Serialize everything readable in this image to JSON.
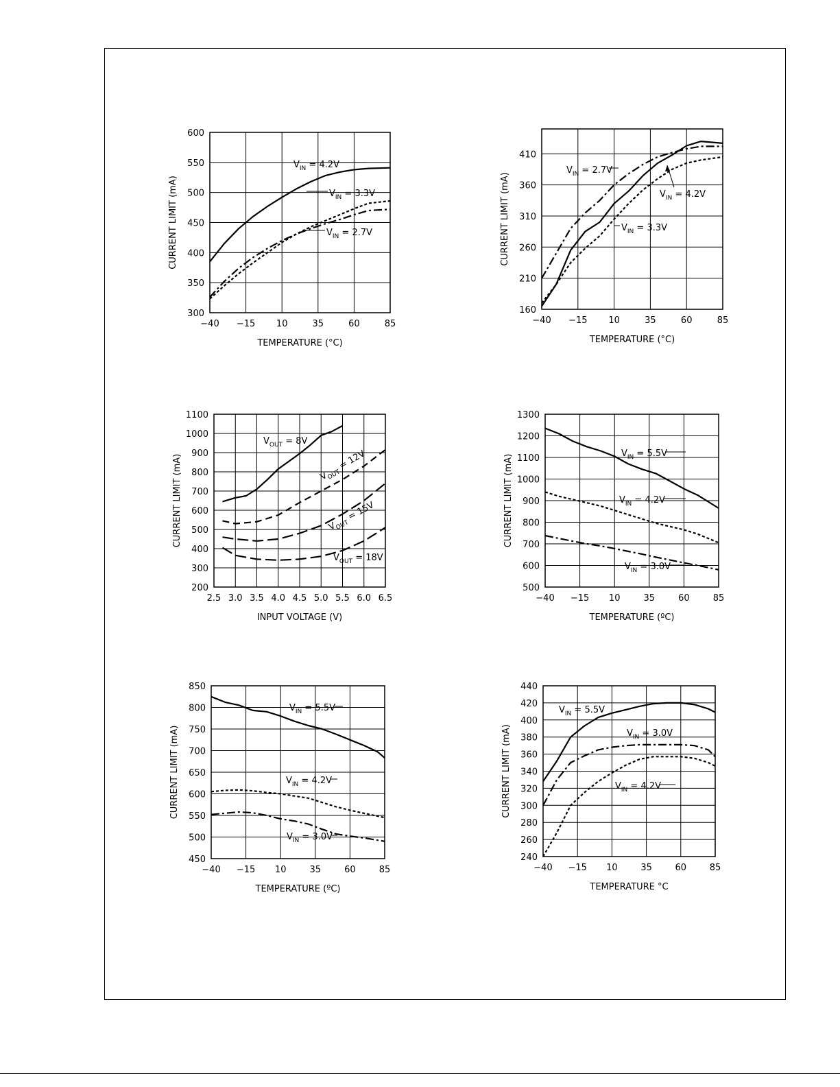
{
  "chart_data": [
    {
      "type": "line",
      "xlabel": "TEMPERATURE (°C)",
      "ylabel": "CURRENT LIMIT (mA)",
      "xlim": [
        -40,
        85
      ],
      "ylim": [
        300,
        600
      ],
      "xticks": [
        -40,
        -15,
        10,
        35,
        60,
        85
      ],
      "yticks": [
        300,
        350,
        400,
        450,
        500,
        550,
        600
      ],
      "grid": true,
      "series": [
        {
          "name": "VIN = 4.2V",
          "label_main": "V",
          "label_sub": "IN",
          "label_tail": " = 4.2V",
          "style": "solid",
          "x": [
            -40,
            -30,
            -20,
            -10,
            0,
            10,
            20,
            30,
            40,
            50,
            60,
            70,
            85
          ],
          "y": [
            385,
            415,
            440,
            460,
            477,
            492,
            506,
            518,
            528,
            534,
            538,
            540,
            541
          ]
        },
        {
          "name": "VIN = 3.3V",
          "label_main": "V",
          "label_sub": "IN",
          "label_tail": " = 3.3V",
          "style": "dotted",
          "x": [
            -40,
            -30,
            -20,
            -10,
            0,
            10,
            20,
            30,
            40,
            50,
            60,
            70,
            85
          ],
          "y": [
            323,
            345,
            365,
            383,
            400,
            417,
            431,
            443,
            453,
            463,
            473,
            482,
            486
          ]
        },
        {
          "name": "VIN = 2.7V",
          "label_main": "V",
          "label_sub": "IN",
          "label_tail": " = 2.7V",
          "style": "dashdot",
          "x": [
            -40,
            -30,
            -20,
            -10,
            0,
            10,
            20,
            30,
            40,
            50,
            60,
            70,
            85
          ],
          "y": [
            326,
            352,
            374,
            392,
            407,
            420,
            431,
            440,
            448,
            455,
            463,
            470,
            472
          ]
        }
      ]
    },
    {
      "type": "line",
      "xlabel": "TEMPERATURE (°C)",
      "ylabel": "CURRENT LIMIT (mA)",
      "xlim": [
        -40,
        85
      ],
      "ylim": [
        160,
        450
      ],
      "xticks": [
        -40,
        -15,
        10,
        35,
        60,
        85
      ],
      "yticks": [
        160,
        210,
        260,
        310,
        360,
        410
      ],
      "grid": true,
      "series": [
        {
          "name": "VIN = 2.7V",
          "label_main": "V",
          "label_sub": "IN",
          "label_tail": " = 2.7V",
          "style": "dashdot",
          "x": [
            -40,
            -30,
            -20,
            -10,
            0,
            10,
            20,
            30,
            40,
            50,
            60,
            70,
            85
          ],
          "y": [
            210,
            250,
            290,
            315,
            335,
            360,
            378,
            393,
            405,
            412,
            418,
            422,
            422
          ]
        },
        {
          "name": "VIN = 4.2V",
          "label_main": "V",
          "label_sub": "IN",
          "label_tail": " = 4.2V",
          "style": "solid",
          "x": [
            -40,
            -30,
            -20,
            -10,
            0,
            10,
            20,
            30,
            40,
            50,
            60,
            70,
            85
          ],
          "y": [
            165,
            200,
            255,
            285,
            300,
            330,
            350,
            375,
            395,
            408,
            423,
            430,
            427
          ]
        },
        {
          "name": "VIN = 3.3V",
          "label_main": "V",
          "label_sub": "IN",
          "label_tail": " = 3.3V",
          "style": "dotted",
          "x": [
            -40,
            -30,
            -20,
            -10,
            0,
            10,
            20,
            30,
            40,
            50,
            60,
            70,
            85
          ],
          "y": [
            170,
            200,
            235,
            258,
            278,
            305,
            330,
            352,
            370,
            385,
            395,
            400,
            405
          ]
        }
      ]
    },
    {
      "type": "line",
      "xlabel": "INPUT VOLTAGE (V)",
      "ylabel": "CURRENT LIMIT (mA)",
      "xlim": [
        2.5,
        6.5
      ],
      "ylim": [
        200,
        1100
      ],
      "xticks": [
        "2.5",
        "3.0",
        "3.5",
        "4.0",
        "4.5",
        "5.0",
        "5.5",
        "6.0",
        "6.5"
      ],
      "yticks": [
        200,
        300,
        400,
        500,
        600,
        700,
        800,
        900,
        1000,
        1100
      ],
      "grid": true,
      "series": [
        {
          "name": "VOUT = 8V",
          "label_main": "V",
          "label_sub": "OUT",
          "label_tail": " = 8V",
          "style": "solid",
          "x": [
            2.7,
            3.0,
            3.25,
            3.5,
            3.75,
            4.0,
            4.25,
            4.5,
            4.75,
            5.0,
            5.25,
            5.5
          ],
          "y": [
            645,
            665,
            675,
            710,
            760,
            815,
            855,
            895,
            940,
            990,
            1010,
            1040
          ]
        },
        {
          "name": "VOUT = 12V",
          "label_main": "V",
          "label_sub": "OUT",
          "label_tail": " = 12V",
          "style": "dashed",
          "x": [
            2.7,
            3.0,
            3.5,
            4.0,
            4.5,
            5.0,
            5.5,
            6.0,
            6.5
          ],
          "y": [
            545,
            530,
            540,
            575,
            640,
            700,
            760,
            830,
            915
          ]
        },
        {
          "name": "VOUT = 15V",
          "label_main": "V",
          "label_sub": "OUT",
          "label_tail": " = 15V",
          "style": "longdash",
          "x": [
            2.7,
            3.0,
            3.5,
            4.0,
            4.5,
            5.0,
            5.5,
            6.0,
            6.5
          ],
          "y": [
            460,
            450,
            440,
            450,
            480,
            520,
            580,
            650,
            740
          ]
        },
        {
          "name": "VOUT = 18V",
          "label_main": "V",
          "label_sub": "OUT",
          "label_tail": " = 18V",
          "style": "longdash",
          "x": [
            2.7,
            3.0,
            3.5,
            4.0,
            4.5,
            5.0,
            5.5,
            6.0,
            6.5
          ],
          "y": [
            405,
            365,
            345,
            340,
            345,
            360,
            390,
            440,
            510
          ]
        }
      ]
    },
    {
      "type": "line",
      "xlabel": "TEMPERATURE (ºC)",
      "ylabel": "CURRENT LIMIT (mA)",
      "xlim": [
        -40,
        85
      ],
      "ylim": [
        500,
        1300
      ],
      "xticks": [
        -40,
        -15,
        10,
        35,
        60,
        85
      ],
      "yticks": [
        500,
        600,
        700,
        800,
        900,
        1000,
        1100,
        1200,
        1300
      ],
      "grid": true,
      "series": [
        {
          "name": "VIN = 5.5V",
          "label_main": "V",
          "label_sub": "IN",
          "label_tail": " = 5.5V",
          "style": "solid",
          "x": [
            -40,
            -30,
            -20,
            -10,
            0,
            10,
            20,
            30,
            40,
            50,
            60,
            70,
            85
          ],
          "y": [
            1235,
            1210,
            1175,
            1150,
            1130,
            1105,
            1070,
            1045,
            1025,
            990,
            955,
            925,
            865
          ]
        },
        {
          "name": "VIN = 4.2V",
          "label_main": "V",
          "label_sub": "IN",
          "label_tail": " = 4.2V",
          "style": "dotted",
          "x": [
            -40,
            -30,
            -20,
            -10,
            0,
            10,
            20,
            30,
            40,
            50,
            60,
            70,
            85
          ],
          "y": [
            940,
            920,
            905,
            890,
            875,
            855,
            835,
            815,
            795,
            780,
            765,
            745,
            705
          ]
        },
        {
          "name": "VIN = 3.0V",
          "label_main": "V",
          "label_sub": "IN",
          "label_tail": " = 3.0V",
          "style": "dashdot",
          "x": [
            -40,
            -30,
            -20,
            -10,
            0,
            10,
            20,
            30,
            40,
            50,
            60,
            70,
            85
          ],
          "y": [
            738,
            725,
            712,
            700,
            690,
            678,
            665,
            652,
            638,
            625,
            612,
            600,
            580
          ]
        }
      ]
    },
    {
      "type": "line",
      "xlabel": "TEMPERATURE (ºC)",
      "ylabel": "CURRENT LIMIT (mA)",
      "xlim": [
        -40,
        85
      ],
      "ylim": [
        450,
        850
      ],
      "xticks": [
        -40,
        -15,
        10,
        35,
        60,
        85
      ],
      "yticks": [
        450,
        500,
        550,
        600,
        650,
        700,
        750,
        800,
        850
      ],
      "grid": true,
      "series": [
        {
          "name": "VIN = 5.5V",
          "label_main": "V",
          "label_sub": "IN",
          "label_tail": " = 5.5V",
          "style": "solid",
          "x": [
            -40,
            -30,
            -20,
            -10,
            0,
            10,
            20,
            30,
            40,
            50,
            60,
            70,
            80,
            85
          ],
          "y": [
            825,
            812,
            805,
            793,
            790,
            780,
            768,
            758,
            750,
            738,
            725,
            712,
            697,
            683
          ]
        },
        {
          "name": "VIN = 4.2V",
          "label_main": "V",
          "label_sub": "IN",
          "label_tail": " = 4.2V",
          "style": "dotted",
          "x": [
            -40,
            -30,
            -20,
            -10,
            0,
            10,
            20,
            30,
            40,
            50,
            60,
            70,
            85
          ],
          "y": [
            605,
            608,
            609,
            607,
            603,
            600,
            595,
            590,
            580,
            570,
            562,
            555,
            545
          ]
        },
        {
          "name": "VIN = 3.0V",
          "label_main": "V",
          "label_sub": "IN",
          "label_tail": " = 3.0V",
          "style": "dashdot",
          "x": [
            -40,
            -30,
            -20,
            -10,
            0,
            10,
            20,
            30,
            40,
            50,
            60,
            70,
            85
          ],
          "y": [
            552,
            555,
            558,
            556,
            550,
            542,
            537,
            530,
            518,
            507,
            502,
            498,
            490
          ]
        }
      ]
    },
    {
      "type": "line",
      "xlabel": "TEMPERATURE °C",
      "ylabel": "CURRENT LIMIT (mA)",
      "xlim": [
        -40,
        85
      ],
      "ylim": [
        240,
        440
      ],
      "xticks": [
        -40,
        -15,
        10,
        35,
        60,
        85
      ],
      "yticks": [
        240,
        260,
        280,
        300,
        320,
        340,
        360,
        380,
        400,
        420,
        440
      ],
      "grid": true,
      "series": [
        {
          "name": "VIN = 5.5V",
          "label_main": "V",
          "label_sub": "IN",
          "label_tail": " = 5.5V",
          "style": "solid",
          "x": [
            -40,
            -30,
            -20,
            -10,
            0,
            10,
            20,
            30,
            40,
            50,
            60,
            70,
            80,
            85
          ],
          "y": [
            328,
            352,
            380,
            393,
            403,
            408,
            412,
            416,
            419,
            420,
            420,
            418,
            413,
            409
          ]
        },
        {
          "name": "VIN = 3.0V",
          "label_main": "V",
          "label_sub": "IN",
          "label_tail": " = 3.0V",
          "style": "dashdot",
          "x": [
            -40,
            -30,
            -20,
            -10,
            0,
            10,
            20,
            30,
            40,
            50,
            60,
            70,
            80,
            85
          ],
          "y": [
            300,
            330,
            350,
            358,
            365,
            368,
            370,
            371,
            371,
            371,
            371,
            370,
            365,
            357
          ]
        },
        {
          "name": "VIN = 4.2V",
          "label_main": "V",
          "label_sub": "IN",
          "label_tail": " = 4.2V",
          "style": "dotted",
          "x": [
            -40,
            -30,
            -20,
            -10,
            0,
            10,
            20,
            30,
            40,
            50,
            60,
            70,
            80,
            85
          ],
          "y": [
            240,
            268,
            300,
            315,
            328,
            338,
            347,
            354,
            357,
            357,
            357,
            355,
            350,
            346
          ]
        }
      ]
    }
  ]
}
